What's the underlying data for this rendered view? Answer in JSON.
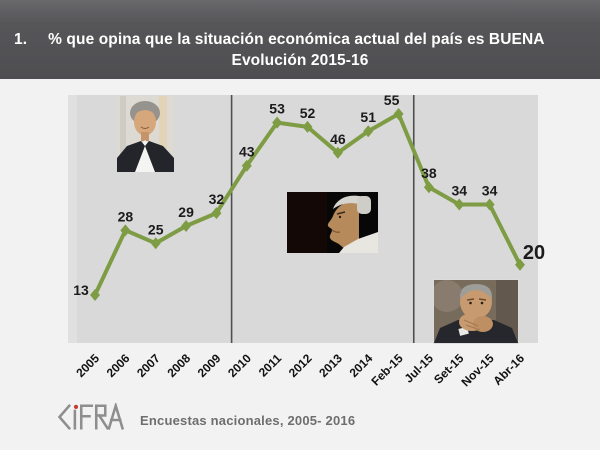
{
  "banner": {
    "number": "1.",
    "title": "% que opina que la situación económica actual del país es BUENA",
    "subtitle": "Evolución 2015-16"
  },
  "chart_data": {
    "type": "line",
    "title": "% que opina que la situación económica actual del país es BUENA — Evolución 2015-16",
    "categories": [
      "2005",
      "2006",
      "2007",
      "2008",
      "2009",
      "2010",
      "2011",
      "2012",
      "2013",
      "2014",
      "Feb-15",
      "Jul-15",
      "Set-15",
      "Nov-15",
      "Abr-16"
    ],
    "values": [
      13,
      28,
      25,
      29,
      32,
      43,
      53,
      52,
      46,
      51,
      55,
      38,
      34,
      34,
      20
    ],
    "xlabel": "",
    "ylabel": "",
    "ylim": [
      0,
      60
    ],
    "grid": false,
    "legend": false,
    "value_axis_visible": false,
    "marker": "diamond",
    "line_color": "#7d9c44",
    "plot_bg": "#d9d9d9",
    "label_color": "#1b1b1b",
    "separator_color": "#4f4f4f",
    "separators_between": [
      [
        "2009",
        "2010"
      ],
      [
        "Feb-15",
        "Jul-15"
      ]
    ],
    "label_offsets": {
      "0": {
        "dx": -14,
        "dy": 0
      },
      "10": {
        "dx": -7,
        "dy": -9
      },
      "14": {
        "dx": 14,
        "dy": -6,
        "big": true
      }
    }
  },
  "footer": {
    "logo_text": "CIFRA",
    "source": "Encuestas nacionales,  2005- 2016"
  }
}
